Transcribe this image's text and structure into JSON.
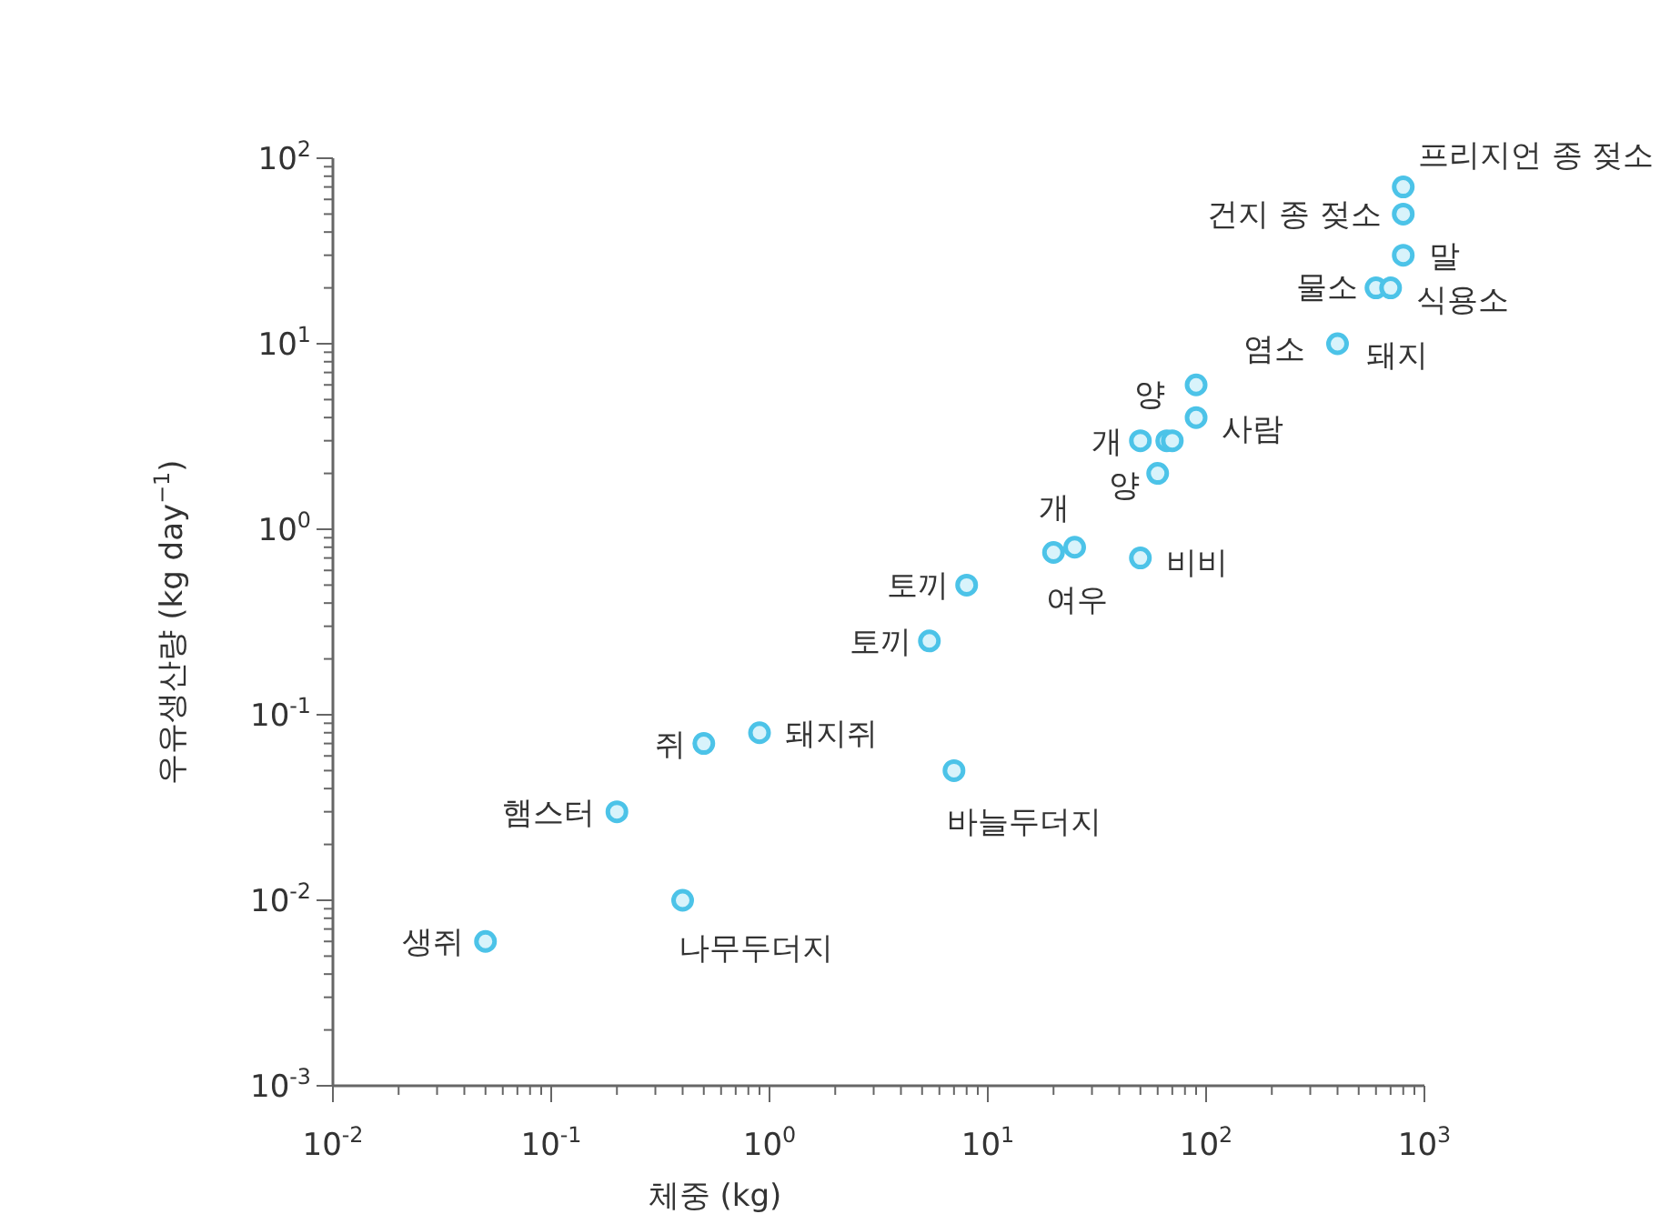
{
  "chart_data": {
    "type": "scatter",
    "xlabel": "체중 (kg)",
    "ylabel": "우유생산량 (kg day$^{−1}$)",
    "log": "xy",
    "grid": false,
    "marker": "circle",
    "xlim": [
      0.01,
      1000
    ],
    "ylim": [
      0.001,
      100
    ],
    "xticks": [
      {
        "value": 0.01,
        "label": "10$^{-2}$"
      },
      {
        "value": 0.1,
        "label": "10$^{-1}$"
      },
      {
        "value": 1,
        "label": "10$^{0}$"
      },
      {
        "value": 10,
        "label": "10$^{1}$"
      },
      {
        "value": 100,
        "label": "10$^{2}$"
      },
      {
        "value": 1000,
        "label": "10$^{3}$"
      }
    ],
    "yticks": [
      {
        "value": 0.001,
        "label": "10$^{-3}$"
      },
      {
        "value": 0.01,
        "label": "10$^{-2}$"
      },
      {
        "value": 0.1,
        "label": "10$^{-1}$"
      },
      {
        "value": 1,
        "label": "10$^{0}$"
      },
      {
        "value": 10,
        "label": "10$^{1}$"
      },
      {
        "value": 100,
        "label": "10$^{2}$"
      }
    ],
    "series": [
      {
        "color": "#4cc3e8",
        "x": [
          0.05,
          0.2,
          0.4,
          0.5,
          0.9,
          7,
          5.4,
          8,
          20,
          25,
          50,
          60,
          50,
          66,
          70,
          90,
          90,
          400,
          600,
          700,
          800,
          800,
          800
        ],
        "values": [
          0.006,
          0.03,
          0.01,
          0.07,
          0.08,
          0.05,
          0.25,
          0.5,
          0.75,
          0.8,
          0.7,
          2,
          3,
          3,
          3,
          4,
          6,
          10,
          20,
          20,
          30,
          50,
          70
        ]
      }
    ],
    "annotations": [
      {
        "text": "생쥐",
        "x": 0.05,
        "y": 0.006
      },
      {
        "text": "햄스터",
        "x": 0.2,
        "y": 0.03
      },
      {
        "text": "나무두더지",
        "x": 0.4,
        "y": 0.01
      },
      {
        "text": "쥐",
        "x": 0.5,
        "y": 0.07
      },
      {
        "text": "돼지쥐",
        "x": 0.9,
        "y": 0.08
      },
      {
        "text": "바늘두더지",
        "x": 7,
        "y": 0.05
      },
      {
        "text": "토끼",
        "x": 5.4,
        "y": 0.25
      },
      {
        "text": "토끼",
        "x": 8,
        "y": 0.5
      },
      {
        "text": "여우",
        "x": 20,
        "y": 0.75
      },
      {
        "text": "개",
        "x": 25,
        "y": 0.8
      },
      {
        "text": "비비",
        "x": 50,
        "y": 0.7
      },
      {
        "text": "양",
        "x": 60,
        "y": 2
      },
      {
        "text": "개",
        "x": 50,
        "y": 3
      },
      {
        "text": "양",
        "x": 66,
        "y": 3
      },
      {
        "text": "사람",
        "x": 90,
        "y": 4
      },
      {
        "text": "염소",
        "x": 90,
        "y": 6
      },
      {
        "text": "돼지",
        "x": 400,
        "y": 10
      },
      {
        "text": "물소",
        "x": 600,
        "y": 20
      },
      {
        "text": "식용소",
        "x": 700,
        "y": 20
      },
      {
        "text": "말",
        "x": 800,
        "y": 30
      },
      {
        "text": "건지 종 젖소",
        "x": 800,
        "y": 50
      },
      {
        "text": "프리지언 종 젖소",
        "x": 800,
        "y": 70
      }
    ]
  }
}
